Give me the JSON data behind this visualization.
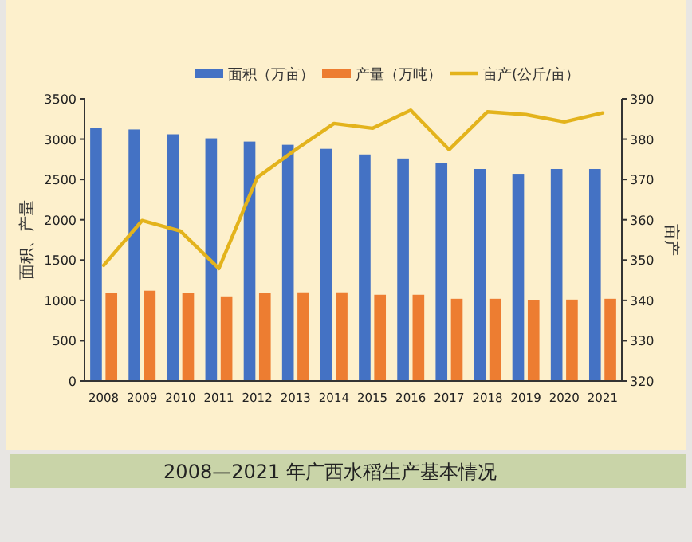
{
  "chart_data": {
    "type": "bar",
    "title": "2008—2021 年广西水稻生产基本情况",
    "categories": [
      "2008",
      "2009",
      "2010",
      "2011",
      "2012",
      "2013",
      "2014",
      "2015",
      "2016",
      "2017",
      "2018",
      "2019",
      "2020",
      "2021"
    ],
    "series": [
      {
        "name": "面积（万亩）",
        "color": "#4472c4",
        "values": [
          3140,
          3120,
          3060,
          3010,
          2970,
          2930,
          2880,
          2810,
          2760,
          2700,
          2630,
          2570,
          2630,
          2630
        ]
      },
      {
        "name": "产量（万吨）",
        "color": "#ed7d31",
        "values": [
          1090,
          1120,
          1090,
          1050,
          1090,
          1100,
          1100,
          1070,
          1070,
          1020,
          1020,
          1000,
          1010,
          1020
        ]
      },
      {
        "name": "亩产(公斤/亩）",
        "type": "line",
        "axis": "y2",
        "color": "#e3b31c",
        "values": [
          348.7,
          359.8,
          357.2,
          347.9,
          370.5,
          377.4,
          383.9,
          382.7,
          387.2,
          377.4,
          386.8,
          386.1,
          384.3,
          386.5
        ]
      }
    ],
    "ylabel": "面积、产量",
    "y2label": "亩产",
    "ylim": [
      0,
      3500
    ],
    "yticks": [
      0,
      500,
      1000,
      1500,
      2000,
      2500,
      3000,
      3500
    ],
    "y2lim": [
      320,
      390
    ],
    "y2ticks": [
      320,
      330,
      340,
      350,
      360,
      370,
      380,
      390
    ],
    "legend": "top",
    "grid": false
  }
}
